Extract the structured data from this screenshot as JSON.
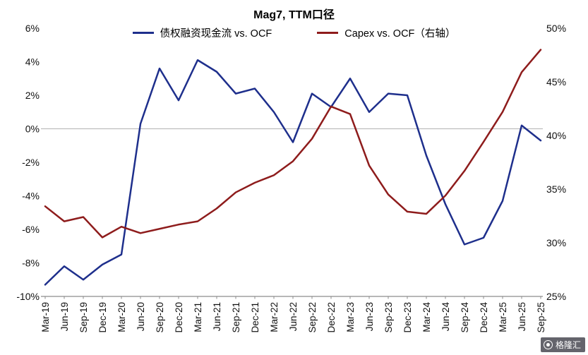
{
  "watermark": {
    "text": "格隆汇"
  },
  "chart_data": {
    "type": "line",
    "title": "Mag7, TTM口径",
    "legend_position": "top",
    "grid": "horizontal line at left-axis 0% only",
    "categories": [
      "Mar-19",
      "Jun-19",
      "Sep-19",
      "Dec-19",
      "Mar-20",
      "Jun-20",
      "Sep-20",
      "Dec-20",
      "Mar-21",
      "Jun-21",
      "Sep-21",
      "Dec-21",
      "Mar-22",
      "Jun-22",
      "Sep-22",
      "Dec-22",
      "Mar-23",
      "Jun-23",
      "Sep-23",
      "Dec-23",
      "Mar-24",
      "Jun-24",
      "Sep-24",
      "Dec-24",
      "Mar-25",
      "Jun-25",
      "Sep-25"
    ],
    "series": [
      {
        "name": "债权融资现金流 vs. OCF",
        "axis": "left",
        "color": "#1e2f8c",
        "values": [
          -9.3,
          -8.2,
          -9.0,
          -8.1,
          -7.5,
          0.3,
          3.6,
          1.7,
          4.1,
          3.4,
          2.1,
          2.4,
          1.0,
          -0.8,
          2.1,
          1.3,
          3.0,
          1.0,
          2.1,
          2.0,
          -1.6,
          -4.5,
          -6.9,
          -6.5,
          -4.3,
          0.2,
          -0.7
        ]
      },
      {
        "name": "Capex vs. OCF（右轴）",
        "axis": "right",
        "color": "#8e1c1c",
        "values": [
          33.4,
          32.0,
          32.4,
          30.5,
          31.5,
          30.9,
          31.3,
          31.7,
          32.0,
          33.2,
          34.7,
          35.6,
          36.3,
          37.6,
          39.7,
          42.7,
          42.0,
          37.2,
          34.5,
          32.9,
          32.7,
          34.4,
          36.7,
          39.4,
          42.2,
          45.9,
          48.0
        ]
      }
    ],
    "left_axis": {
      "max": 6,
      "min": -10,
      "step": 2,
      "tick_labels": [
        "6%",
        "4%",
        "2%",
        "0%",
        "-2%",
        "-4%",
        "-6%",
        "-8%",
        "-10%"
      ]
    },
    "right_axis": {
      "max": 50,
      "min": 25,
      "step": 5,
      "tick_labels": [
        "50%",
        "45%",
        "40%",
        "35%",
        "30%",
        "25%"
      ]
    }
  }
}
